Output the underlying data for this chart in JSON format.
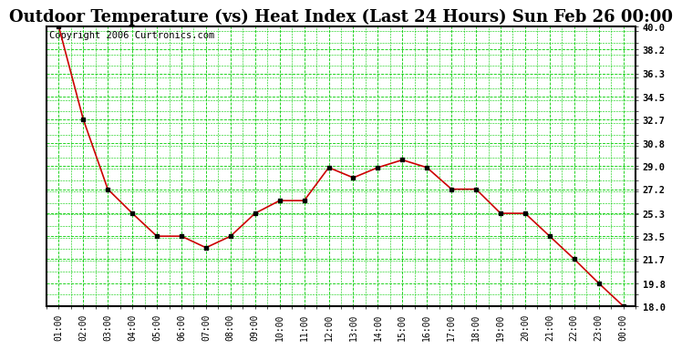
{
  "title": "Outdoor Temperature (vs) Heat Index (Last 24 Hours) Sun Feb 26 00:00",
  "copyright": "Copyright 2006 Curtronics.com",
  "x_labels": [
    "01:00",
    "02:00",
    "03:00",
    "04:00",
    "05:00",
    "06:00",
    "07:00",
    "08:00",
    "09:00",
    "10:00",
    "11:00",
    "12:00",
    "13:00",
    "14:00",
    "15:00",
    "16:00",
    "17:00",
    "18:00",
    "19:00",
    "20:00",
    "21:00",
    "22:00",
    "23:00",
    "00:00"
  ],
  "y_values": [
    40.0,
    32.7,
    27.2,
    25.3,
    23.5,
    23.5,
    22.6,
    23.5,
    25.3,
    26.3,
    26.3,
    28.9,
    28.1,
    28.9,
    29.5,
    28.9,
    27.2,
    27.2,
    25.3,
    25.3,
    23.5,
    21.7,
    19.8,
    18.0
  ],
  "y_min": 18.0,
  "y_max": 40.0,
  "y_ticks": [
    18.0,
    19.8,
    21.7,
    23.5,
    25.3,
    27.2,
    29.0,
    30.8,
    32.7,
    34.5,
    36.3,
    38.2,
    40.0
  ],
  "line_color": "#cc0000",
  "marker_color": "#000000",
  "bg_color": "#ffffff",
  "plot_bg_color": "#ffffff",
  "grid_color": "#00cc00",
  "title_fontsize": 13,
  "copyright_fontsize": 7.5
}
